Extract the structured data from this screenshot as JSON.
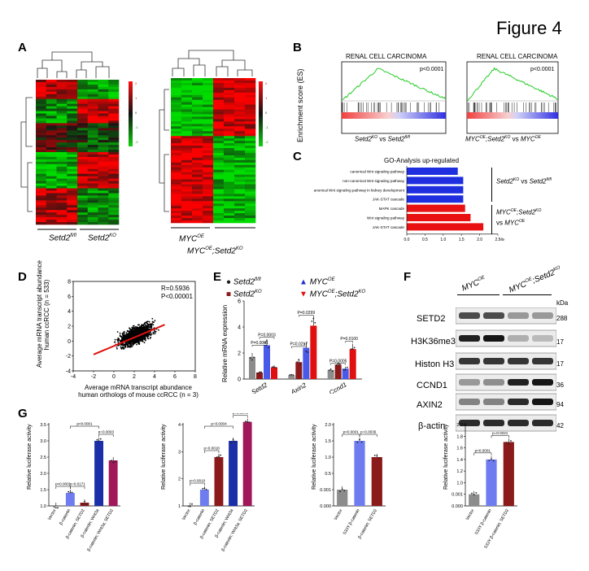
{
  "figure_title": "Figure 4",
  "panels": {
    "A": {
      "label": "A",
      "left_groups": [
        "Setd2",
        "Setd2"
      ],
      "left_group_sups": [
        "fl/fl",
        "KO"
      ],
      "right_groups": [
        "MYC",
        "MYC",
        "Setd2"
      ],
      "right_group_sups": [
        "OE",
        "OE",
        "KO"
      ],
      "scale_ticks": [
        "2",
        "1",
        "0",
        "-1",
        "-2"
      ]
    },
    "B": {
      "label": "B",
      "ylabel": "Enrichment score (ES)",
      "plots": [
        {
          "title": "RENAL CELL CARCINOMA",
          "pval": "p<0.0001",
          "cap1": "Setd2",
          "cap1sup": "KO",
          "capvs": " vs ",
          "cap2": "Setd2",
          "cap2sup": "fl/fl"
        },
        {
          "title": "RENAL CELL CARCINOMA",
          "pval": "p<0.0001",
          "cap1": "MYC",
          "cap1sup": "OE",
          "cap1b": ";Setd2",
          "cap1bsup": "KO",
          "capvs": " vs ",
          "cap2": "MYC",
          "cap2sup": "OE"
        }
      ]
    },
    "C": {
      "label": "C",
      "title": "GO-Analysis up-regulated",
      "xlabel": "-log10P",
      "group1_a": "Setd2",
      "group1_a_sup": "KO",
      "group1_vs": " vs ",
      "group1_b": "Setd2",
      "group1_b_sup": "fl/fl",
      "group2_a": "MYC",
      "group2_a_sup": "OE",
      "group2_a2": ";Setd2",
      "group2_a2_sup": "KO",
      "group2_vs": "vs ",
      "group2_b": "MYC",
      "group2_b_sup": "OE"
    },
    "D": {
      "label": "D",
      "ylabel1": "Average mRNA transcript abundance",
      "ylabel2": "human ccRCC (n = 533)",
      "xlabel1": "Average mRNA transcript abundance",
      "xlabel2": "human orthologs of mouse ccRCC (n = 3)",
      "r_text": "R=0.5936",
      "p_text": "P<0.00001"
    },
    "E": {
      "label": "E",
      "ylabel": "Relative mRNA expression",
      "legend": [
        {
          "name": "Setd2",
          "sup": "fl/fl",
          "color": "#1a1a1a",
          "marker": "circle"
        },
        {
          "name": "Setd2",
          "sup": "KO",
          "color": "#8b1a1a",
          "marker": "square"
        },
        {
          "name": "MYC",
          "sup": "OE",
          "color": "#1f2fd6",
          "marker": "triangle"
        },
        {
          "name": "MYC",
          "sup": "OE",
          "name2": ";Setd2",
          "sup2": "KO",
          "color": "#e01010",
          "marker": "triangle-down"
        }
      ],
      "pvals": [
        "P=0.0001",
        "P=0.0003",
        "P=0.0217",
        "P=0.0299",
        "P=0.0005",
        "P=0.0100"
      ]
    },
    "F": {
      "label": "F",
      "col1": "MYC",
      "col1_sup": "OE",
      "col2": "MYC",
      "col2_sup": "OE",
      "col2b": ";Setd2",
      "col2b_sup": "KO",
      "kda": "kDa",
      "blots": [
        {
          "name": "SETD2",
          "kda": "288"
        },
        {
          "name": "H3K36me3",
          "kda": "17"
        },
        {
          "name": "Histon H3",
          "kda": "17"
        },
        {
          "name": "CCND1",
          "kda": "36"
        },
        {
          "name": "AXIN2",
          "kda": "94"
        },
        {
          "name": "β-actin",
          "kda": "42"
        }
      ]
    },
    "G": {
      "label": "G",
      "ylabel": "Relative luciferase activity"
    }
  },
  "chart_data": [
    {
      "panel": "C",
      "type": "bar",
      "title": "GO-Analysis up-regulated",
      "xlabel": "-log10P",
      "orientation": "horizontal",
      "categories": [
        "canonical Wnt signaling pathway",
        "non-canonical Wnt signaling pathway",
        "anonical Wnt signaling pathway in kidney development",
        "JAK-STAT cascade",
        "MAPK cascade",
        "Wnt signaling pathway",
        "JAK-STAT cascade"
      ],
      "values": [
        1.4,
        1.55,
        1.55,
        1.55,
        1.6,
        1.75,
        2.1
      ],
      "colors": [
        "#1f2fe0",
        "#1f2fe0",
        "#1f2fe0",
        "#1f2fe0",
        "#e81010",
        "#e81010",
        "#e81010"
      ],
      "x_ticks": [
        "0.0",
        "0.5",
        "1.0",
        "1.5",
        "2.0",
        "2.5"
      ],
      "xlim": [
        0,
        2.5
      ]
    },
    {
      "panel": "D",
      "type": "scatter",
      "xlim": [
        -4,
        8
      ],
      "ylim": [
        -4,
        8
      ],
      "x_ticks": [
        "-4",
        "-2",
        "0",
        "2",
        "4",
        "6",
        "8"
      ],
      "y_ticks": [
        "-4",
        "-2",
        "0",
        "2",
        "4",
        "6",
        "8"
      ],
      "r": 0.5936,
      "fit_line": {
        "x": [
          -2,
          5
        ],
        "y": [
          -1.8,
          2.2
        ]
      },
      "n_points": 1500
    },
    {
      "panel": "E",
      "type": "bar",
      "categories": [
        "Setd2",
        "Axin2",
        "Ccnd1"
      ],
      "ylim": [
        0,
        6
      ],
      "y_ticks": [
        "0",
        "2",
        "4",
        "6"
      ],
      "series": [
        {
          "name": "Setd2",
          "values": [
            1.7,
            0.3,
            0.7
          ],
          "color": "#8c8c8c"
        },
        {
          "name": "Setd2",
          "values": [
            0.5,
            1.3,
            1.1
          ],
          "color": "#8b1a1a"
        },
        {
          "name": "MYC",
          "values": [
            2.6,
            2.4,
            0.8
          ],
          "color": "#4a5ae8"
        },
        {
          "name": "MYC",
          "values": [
            0.9,
            4.1,
            2.3
          ],
          "color": "#e01010"
        }
      ]
    },
    {
      "panel": "G1",
      "type": "bar",
      "categories": [
        "Vector",
        "β-catenin",
        "β-catenin; SETD2",
        "β-catenin; Wnt3a",
        "β-catenin; Wnt3a; SETD2"
      ],
      "values": [
        1.0,
        1.4,
        1.1,
        3.0,
        2.4
      ],
      "colors": [
        "#8c8c8c",
        "#6e7cf0",
        "#8b1a1a",
        "#1a2fa8",
        "#a0185a"
      ],
      "ylim": [
        1.0,
        3.5
      ],
      "y_ticks": [
        "1.0",
        "1.5",
        "2.0",
        "2.5",
        "3.0",
        "3.5"
      ],
      "pvals": [
        "p<0.0001",
        "p<0.0001",
        "p=0.0171",
        "p=0.0003"
      ]
    },
    {
      "panel": "G2",
      "type": "bar",
      "categories": [
        "Vector",
        "β-catenin",
        "β-catenin; SETD2",
        "β-catenin; Wnt3a",
        "β-catenin; Wnt3a; SETD2"
      ],
      "values": [
        1.0,
        1.6,
        2.8,
        3.4,
        4.1
      ],
      "colors": [
        "#8c8c8c",
        "#6e7cf0",
        "#8b1a1a",
        "#1a2fa8",
        "#a0185a"
      ],
      "ylim": [
        1.0,
        4.5
      ],
      "y_ticks": [
        "1",
        "2",
        "3",
        "4"
      ],
      "pvals": [
        "p=0.0010",
        "p=0.0004",
        "p=0.0018",
        "p=0.0072"
      ]
    },
    {
      "panel": "G3",
      "type": "bar",
      "categories": [
        "Vector",
        "S33Y β-catenin",
        "β-catenin; SETD2"
      ],
      "values": [
        0.001,
        1.5,
        1.0
      ],
      "colors": [
        "#8c8c8c",
        "#6e7cf0",
        "#8b1a1a"
      ],
      "y_ticks": [
        "0.000",
        "0.001",
        "0.5",
        "1.0",
        "1.5",
        "2.0"
      ],
      "pvals": [
        "p<0.0001",
        "p=0.0036"
      ]
    },
    {
      "panel": "G4",
      "type": "bar",
      "categories": [
        "Vector",
        "S33Y β-catenin",
        "S33Y β-catenin; SETD2"
      ],
      "values": [
        0.001,
        1.4,
        1.7
      ],
      "colors": [
        "#8c8c8c",
        "#6e7cf0",
        "#8b1a1a"
      ],
      "y_ticks": [
        "0.000",
        "0.001",
        "1.0",
        "1.2",
        "1.4",
        "1.6",
        "1.8",
        "2.0"
      ],
      "pvals": [
        "p<0.0001",
        "p=0.0221"
      ]
    }
  ]
}
